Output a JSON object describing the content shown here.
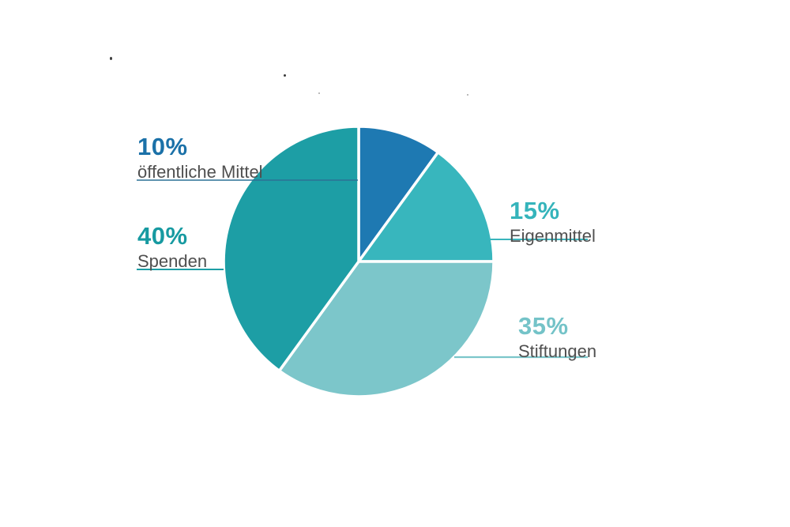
{
  "background_color": "#ffffff",
  "chart_data": {
    "type": "pie",
    "title": "",
    "total": 100,
    "direction": "clockwise",
    "start_angle_deg": 0,
    "separator_color": "#ffffff",
    "name_text_color": "#4f4f4f",
    "legend_position": "callout-labels",
    "slices": [
      {
        "id": "oeffentliche-mittel",
        "pct_label": "10%",
        "label": "öffentliche Mittel",
        "value": 10,
        "color": "#1e79b2",
        "text_color": "#1b71a8",
        "line_color": "#2c7195"
      },
      {
        "id": "eigenmittel",
        "pct_label": "15%",
        "label": "Eigenmittel",
        "value": 15,
        "color": "#38b6bd",
        "text_color": "#35b4bb",
        "line_color": "#3ab5bc"
      },
      {
        "id": "stiftungen",
        "pct_label": "35%",
        "label": "Stiftungen",
        "value": 35,
        "color": "#7cc6ca",
        "text_color": "#74c3c8",
        "line_color": "#7cc6ca"
      },
      {
        "id": "spenden",
        "pct_label": "40%",
        "label": "Spenden",
        "value": 40,
        "color": "#1d9ea5",
        "text_color": "#179aa1",
        "line_color": "#1d9ea5"
      }
    ]
  }
}
